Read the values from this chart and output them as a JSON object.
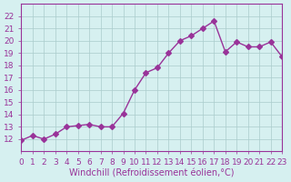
{
  "x": [
    0,
    1,
    2,
    3,
    4,
    5,
    6,
    7,
    8,
    9,
    10,
    11,
    12,
    13,
    14,
    15,
    16,
    17,
    18,
    19,
    20,
    21,
    22,
    23
  ],
  "y": [
    11.9,
    12.3,
    12.0,
    12.4,
    13.0,
    13.1,
    13.2,
    13.0,
    13.0,
    14.1,
    16.0,
    17.4,
    17.8,
    19.0,
    20.0,
    20.4,
    21.0,
    21.6,
    19.1,
    19.9,
    19.5,
    19.5,
    19.9,
    18.7
  ],
  "line_color": "#993399",
  "marker": "D",
  "marker_size": 3,
  "bg_color": "#d6f0f0",
  "grid_color": "#aacccc",
  "xlabel": "Windchill (Refroidissement éolien,°C)",
  "ylim": [
    11,
    23
  ],
  "xlim": [
    0,
    23
  ],
  "yticks": [
    12,
    13,
    14,
    15,
    16,
    17,
    18,
    19,
    20,
    21,
    22
  ],
  "xticks": [
    0,
    1,
    2,
    3,
    4,
    5,
    6,
    7,
    8,
    9,
    10,
    11,
    12,
    13,
    14,
    15,
    16,
    17,
    18,
    19,
    20,
    21,
    22,
    23
  ],
  "axis_color": "#993399",
  "tick_color": "#993399",
  "label_fontsize": 7,
  "tick_fontsize": 6.5
}
